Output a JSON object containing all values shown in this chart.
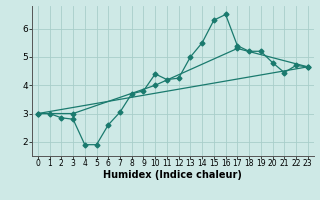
{
  "line1_x": [
    0,
    1,
    2,
    3,
    4,
    5,
    6,
    7,
    8,
    9,
    10,
    11,
    12,
    13,
    14,
    15,
    16,
    17,
    18,
    19,
    20,
    21,
    22,
    23
  ],
  "line1_y": [
    3.0,
    3.0,
    2.85,
    2.8,
    1.9,
    1.9,
    2.6,
    3.05,
    3.7,
    3.8,
    4.4,
    4.2,
    4.25,
    5.0,
    5.5,
    6.3,
    6.5,
    5.4,
    5.2,
    5.2,
    4.8,
    4.45,
    4.7,
    4.65
  ],
  "line2_x": [
    0,
    3,
    10,
    17,
    23
  ],
  "line2_y": [
    3.0,
    3.0,
    4.0,
    5.3,
    4.65
  ],
  "line3_x": [
    0,
    23
  ],
  "line3_y": [
    3.0,
    4.65
  ],
  "line_color": "#1a7a6e",
  "bg_color": "#cee9e6",
  "grid_color": "#a8ceca",
  "xlabel": "Humidex (Indice chaleur)",
  "xlim": [
    -0.5,
    23.5
  ],
  "ylim": [
    1.5,
    6.8
  ],
  "yticks": [
    2,
    3,
    4,
    5,
    6
  ],
  "xticks": [
    0,
    1,
    2,
    3,
    4,
    5,
    6,
    7,
    8,
    9,
    10,
    11,
    12,
    13,
    14,
    15,
    16,
    17,
    18,
    19,
    20,
    21,
    22,
    23
  ],
  "marker": "D",
  "markersize": 2.5,
  "linewidth": 0.9,
  "xlabel_fontsize": 7,
  "tick_fontsize": 5.5
}
